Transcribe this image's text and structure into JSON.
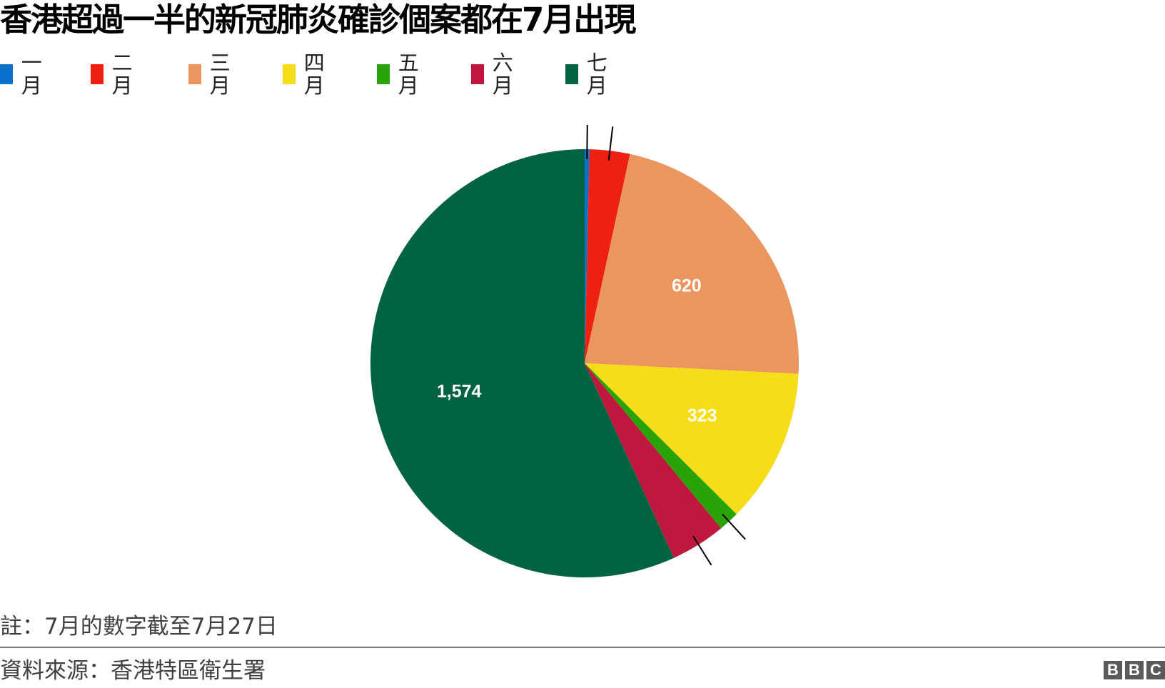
{
  "title": "香港超過一半的新冠肺炎確診個案都在7月出現",
  "legend": [
    {
      "label": "一月",
      "color": "#0a72cc"
    },
    {
      "label": "二月",
      "color": "#ee2011"
    },
    {
      "label": "三月",
      "color": "#ea965e"
    },
    {
      "label": "四月",
      "color": "#f5dd17"
    },
    {
      "label": "五月",
      "color": "#2aa307"
    },
    {
      "label": "六月",
      "color": "#c0173f"
    },
    {
      "label": "七月",
      "color": "#026341"
    }
  ],
  "footer": {
    "note": "註：7月的數字截至7月27日",
    "source": "資料來源：香港特區衛生署",
    "logo": [
      "B",
      "B",
      "C"
    ]
  },
  "chart_data": {
    "type": "pie",
    "title": "香港超過一半的新冠肺炎確診個案都在7月出現",
    "categories": [
      "一月",
      "二月",
      "三月",
      "四月",
      "五月",
      "六月",
      "七月"
    ],
    "values": [
      10,
      84,
      620,
      323,
      43,
      115,
      1574
    ],
    "colors": [
      "#0a72cc",
      "#ee2011",
      "#ea965e",
      "#f5dd17",
      "#2aa307",
      "#c0173f",
      "#026341"
    ],
    "data_labels": [
      "",
      "",
      "620",
      "323",
      "",
      "",
      "1,574"
    ],
    "leader_lines": [
      true,
      true,
      false,
      false,
      true,
      true,
      false
    ],
    "legend_position": "top",
    "start_angle": 0,
    "direction": "clockwise"
  }
}
